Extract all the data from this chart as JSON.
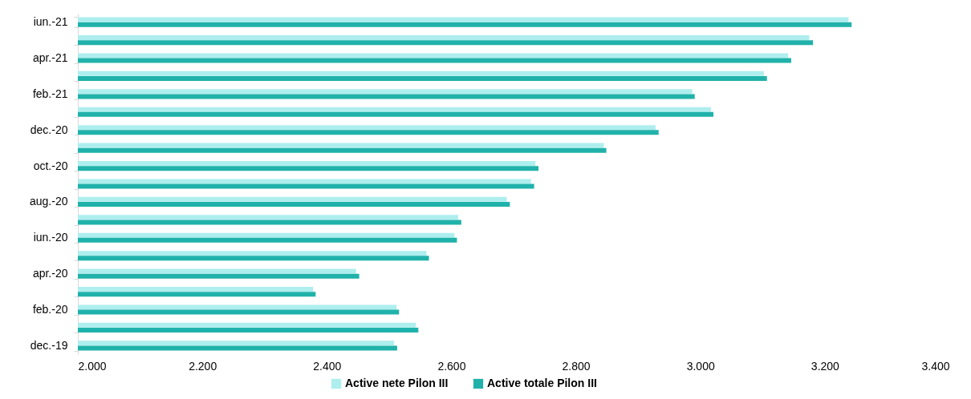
{
  "chart_data": {
    "type": "bar",
    "orientation": "horizontal",
    "categories": [
      "iun.-21",
      null,
      "apr.-21",
      null,
      "feb.-21",
      null,
      "dec.-20",
      null,
      "oct.-20",
      null,
      "aug.-20",
      null,
      "iun.-20",
      null,
      "apr.-20",
      null,
      "feb.-20",
      null,
      "dec.-19"
    ],
    "series": [
      {
        "name": "Active nete Pilon III",
        "color": "#aeeeee",
        "values": [
          3238,
          3175,
          3141,
          3102,
          2987,
          3017,
          2928,
          2845,
          2735,
          2728,
          2689,
          2611,
          2605,
          2560,
          2447,
          2378,
          2512,
          2543,
          2508
        ]
      },
      {
        "name": "Active totale Pilon III",
        "color": "#20b2aa",
        "values": [
          3243,
          3181,
          3146,
          3107,
          2991,
          3021,
          2933,
          2849,
          2740,
          2733,
          2694,
          2616,
          2609,
          2564,
          2452,
          2382,
          2516,
          2547,
          2513
        ]
      }
    ],
    "xlim": [
      2000,
      3400
    ],
    "xticks": [
      {
        "value": 2000,
        "label": "2.000"
      },
      {
        "value": 2200,
        "label": "2.200"
      },
      {
        "value": 2400,
        "label": "2.400"
      },
      {
        "value": 2600,
        "label": "2.600"
      },
      {
        "value": 2800,
        "label": "2.800"
      },
      {
        "value": 3000,
        "label": "3.000"
      },
      {
        "value": 3200,
        "label": "3.200"
      },
      {
        "value": 3400,
        "label": "3.400"
      }
    ],
    "grid": false,
    "legend": "bottom"
  }
}
